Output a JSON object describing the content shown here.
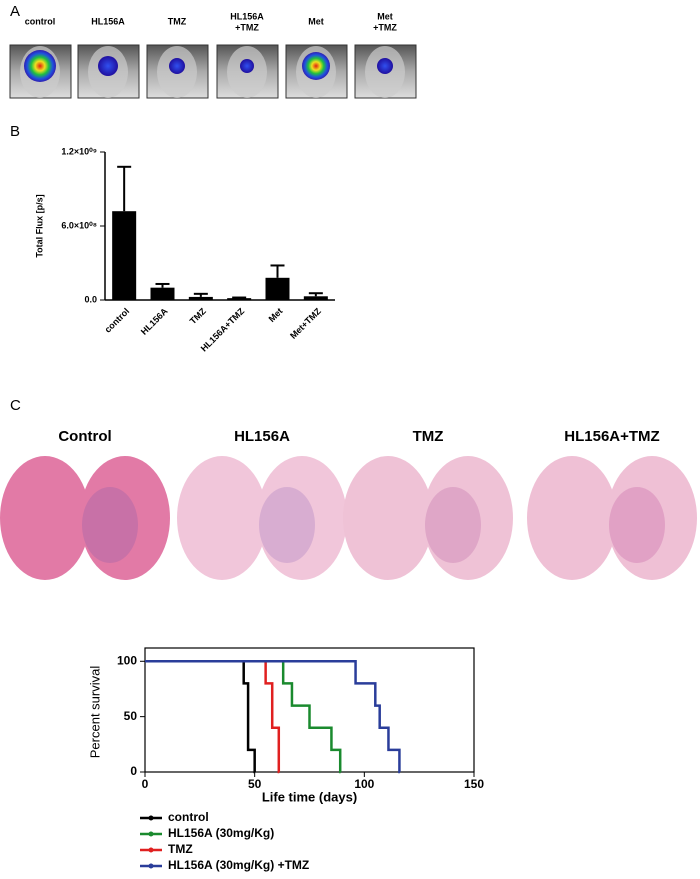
{
  "panel_labels": [
    "A",
    "B",
    "C"
  ],
  "panel_a": {
    "labels": [
      [
        "control"
      ],
      [
        "HL156A"
      ],
      [
        "TMZ"
      ],
      [
        "HL156A",
        "+TMZ"
      ],
      [
        "Met"
      ],
      [
        "Met",
        "+TMZ"
      ]
    ]
  },
  "panel_c": {
    "labels": [
      "Control",
      "HL156A",
      "TMZ",
      "HL156A+TMZ"
    ]
  },
  "chart_data": [
    {
      "type": "bar",
      "y_label": "Total Flux [p/s]",
      "categories": [
        "control",
        "HL156A",
        "TMZ",
        "HL156A+TMZ",
        "Met",
        "Met+TMZ"
      ],
      "values": [
        720000000,
        100000000,
        25000000,
        15000000,
        180000000,
        30000000
      ],
      "errors": [
        360000000,
        30000000,
        25000000,
        5000000,
        100000000,
        25000000
      ],
      "color": "#000000",
      "ylim": [
        0,
        1200000000
      ],
      "yticks": [
        {
          "value": 0,
          "label": "0.0"
        },
        {
          "value": 600000000,
          "label": "6.0×10⁰⁸"
        },
        {
          "value": 1200000000,
          "label": "1.2×10⁰⁹"
        }
      ]
    },
    {
      "type": "line",
      "step": true,
      "x_label": "Life time (days)",
      "y_label": "Percent survival",
      "xlim": [
        0,
        150
      ],
      "xticks": [
        0,
        50,
        100,
        150
      ],
      "ylim": [
        0,
        112
      ],
      "yticks": [
        0,
        50,
        100
      ],
      "legend": "bottom",
      "series": [
        {
          "name": "control",
          "color": "#000000",
          "x": [
            0,
            45,
            47,
            50
          ],
          "values": [
            100,
            80,
            20,
            0
          ]
        },
        {
          "name": "HL156A (30mg/Kg)",
          "color": "#1a8a2e",
          "x": [
            0,
            63,
            67,
            75,
            85,
            89
          ],
          "values": [
            100,
            80,
            60,
            40,
            20,
            0
          ]
        },
        {
          "name": "TMZ",
          "color": "#e02020",
          "x": [
            0,
            55,
            58,
            61
          ],
          "values": [
            100,
            80,
            40,
            0
          ]
        },
        {
          "name": "HL156A (30mg/Kg) +TMZ",
          "color": "#2a3d9a",
          "x": [
            0,
            96,
            105,
            107,
            111,
            116
          ],
          "values": [
            100,
            80,
            60,
            40,
            20,
            0
          ]
        }
      ]
    }
  ]
}
